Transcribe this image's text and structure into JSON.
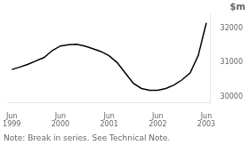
{
  "chart_data": {
    "type": "line",
    "x": [
      0,
      2,
      4,
      6,
      8,
      10,
      12,
      14,
      16,
      18,
      20,
      22,
      24,
      26,
      28,
      30,
      32,
      34,
      36,
      38,
      40,
      42,
      44,
      46,
      48
    ],
    "values": [
      30800,
      30870,
      30950,
      31050,
      31150,
      31350,
      31480,
      31520,
      31530,
      31480,
      31400,
      31320,
      31200,
      31000,
      30700,
      30400,
      30250,
      30200,
      30200,
      30250,
      30350,
      30500,
      30700,
      31200,
      32150
    ],
    "color": "#000000",
    "xlim": [
      -1,
      49
    ],
    "xticks": [
      {
        "value": 0,
        "label": "Jun\n1999"
      },
      {
        "value": 12,
        "label": "Jun\n2000"
      },
      {
        "value": 24,
        "label": "Jun\n2001"
      },
      {
        "value": 36,
        "label": "Jun\n2002"
      },
      {
        "value": 48,
        "label": "Jun\n2003"
      }
    ],
    "ylim": [
      29850,
      32400
    ],
    "yticks": [
      30000,
      31000,
      32000
    ],
    "ylabel": "$m",
    "annotations": [
      "Note: Break in series. See Technical Note."
    ],
    "grid": false
  }
}
